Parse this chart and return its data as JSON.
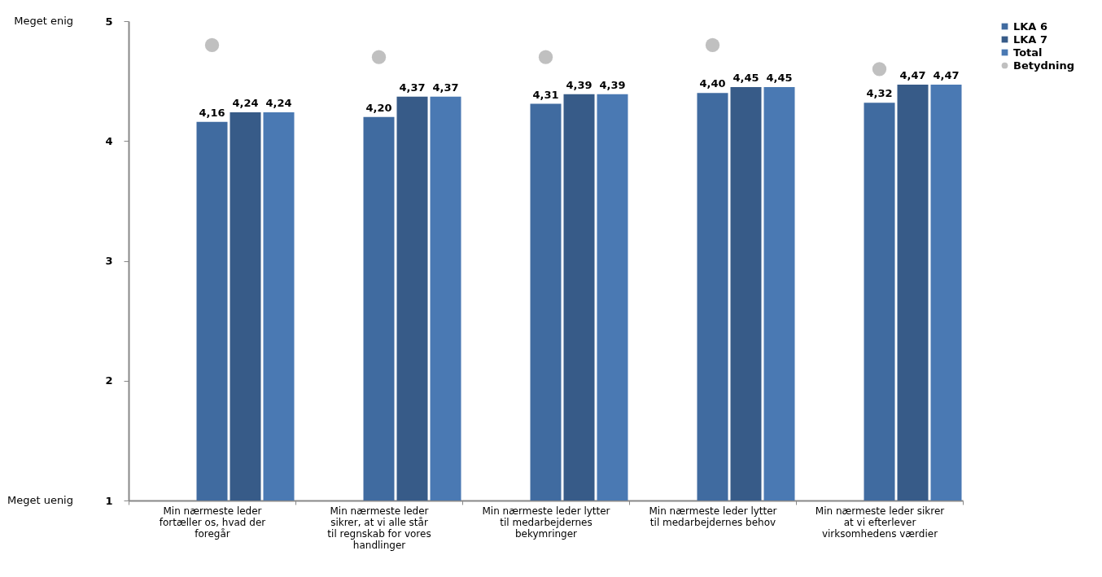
{
  "chart_data": {
    "type": "bar",
    "categories": [
      "Min nærmeste leder fortæller os, hvad der foregår",
      "Min nærmeste leder sikrer, at vi alle står til regnskab for vores handlinger",
      "Min nærmeste leder lytter til medarbejdernes bekymringer",
      "Min nærmeste leder lytter til medarbejdernes behov",
      "Min nærmeste leder sikrer at vi efterlever virksomhedens værdier"
    ],
    "series": [
      {
        "name": "LKA 6",
        "color": "#406ba0",
        "values": [
          4.16,
          4.2,
          4.31,
          4.4,
          4.32
        ],
        "value_labels": [
          "4,16",
          "4,20",
          "4,31",
          "4,40",
          "4,32"
        ]
      },
      {
        "name": "LKA 7",
        "color": "#375b88",
        "values": [
          4.24,
          4.37,
          4.39,
          4.45,
          4.47
        ],
        "value_labels": [
          "4,24",
          "4,37",
          "4,39",
          "4,45",
          "4,47"
        ]
      },
      {
        "name": "Total",
        "color": "#4a79b3",
        "values": [
          4.24,
          4.37,
          4.39,
          4.45,
          4.47
        ],
        "value_labels": [
          "4,24",
          "4,37",
          "4,39",
          "4,45",
          "4,47"
        ]
      },
      {
        "name": "Betydning",
        "type": "scatter",
        "color": "#c0c0c0",
        "values": [
          4.8,
          4.7,
          4.7,
          4.8,
          4.6
        ]
      }
    ],
    "ylim": [
      1,
      5
    ],
    "yticks": [
      1,
      2,
      3,
      4,
      5
    ],
    "annotations": [
      "Meget enig",
      "Meget uenig"
    ],
    "grid": false,
    "legend": "right",
    "marker": "circle"
  }
}
